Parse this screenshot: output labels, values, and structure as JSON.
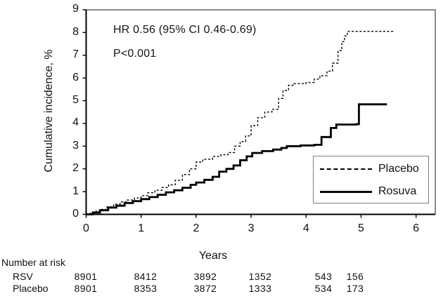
{
  "chart_data": {
    "type": "line",
    "subtype": "kaplan-meier-step",
    "ylabel": "Cumulative incidence, %",
    "xlabel": "Years",
    "xlim": [
      0,
      6
    ],
    "ylim": [
      0,
      9
    ],
    "xticks": [
      "0",
      "1",
      "2",
      "3",
      "4",
      "5",
      "6"
    ],
    "yticks": [
      "0",
      "1",
      "2",
      "3",
      "4",
      "5",
      "6",
      "7",
      "8",
      "9"
    ],
    "grid": false,
    "annotations": {
      "hr_text": "HR 0.56 (95% CI 0.46-0.69)",
      "p_text": "P<0.001"
    },
    "legend": {
      "position": "inside lower right",
      "entries": [
        {
          "name": "Placebo",
          "style": "dashed"
        },
        {
          "name": "Rosuva",
          "style": "solid"
        }
      ]
    },
    "series": [
      {
        "name": "Placebo",
        "style": "dashed",
        "color": "#000000",
        "points": [
          [
            0,
            0
          ],
          [
            0.08,
            0.06
          ],
          [
            0.18,
            0.14
          ],
          [
            0.28,
            0.22
          ],
          [
            0.38,
            0.33
          ],
          [
            0.5,
            0.45
          ],
          [
            0.62,
            0.55
          ],
          [
            0.75,
            0.63
          ],
          [
            0.88,
            0.72
          ],
          [
            1.0,
            0.82
          ],
          [
            1.12,
            0.95
          ],
          [
            1.25,
            1.06
          ],
          [
            1.38,
            1.18
          ],
          [
            1.5,
            1.3
          ],
          [
            1.62,
            1.5
          ],
          [
            1.75,
            1.75
          ],
          [
            1.88,
            2.0
          ],
          [
            2.0,
            2.3
          ],
          [
            2.12,
            2.42
          ],
          [
            2.3,
            2.55
          ],
          [
            2.45,
            2.62
          ],
          [
            2.58,
            2.72
          ],
          [
            2.7,
            3.0
          ],
          [
            2.8,
            3.2
          ],
          [
            2.9,
            3.45
          ],
          [
            3.0,
            3.9
          ],
          [
            3.12,
            4.25
          ],
          [
            3.25,
            4.5
          ],
          [
            3.38,
            4.62
          ],
          [
            3.5,
            5.1
          ],
          [
            3.58,
            5.45
          ],
          [
            3.68,
            5.68
          ],
          [
            3.78,
            5.75
          ],
          [
            4.0,
            5.8
          ],
          [
            4.15,
            5.95
          ],
          [
            4.25,
            6.1
          ],
          [
            4.38,
            6.3
          ],
          [
            4.48,
            6.65
          ],
          [
            4.58,
            7.2
          ],
          [
            4.65,
            7.6
          ],
          [
            4.7,
            7.85
          ],
          [
            4.75,
            8.05
          ],
          [
            5.6,
            8.05
          ]
        ]
      },
      {
        "name": "Rosuva",
        "style": "solid",
        "color": "#000000",
        "points": [
          [
            0,
            0
          ],
          [
            0.12,
            0.08
          ],
          [
            0.25,
            0.18
          ],
          [
            0.4,
            0.3
          ],
          [
            0.55,
            0.38
          ],
          [
            0.7,
            0.5
          ],
          [
            0.85,
            0.58
          ],
          [
            1.0,
            0.67
          ],
          [
            1.15,
            0.76
          ],
          [
            1.3,
            0.86
          ],
          [
            1.45,
            0.97
          ],
          [
            1.6,
            1.06
          ],
          [
            1.75,
            1.17
          ],
          [
            1.9,
            1.3
          ],
          [
            2.0,
            1.4
          ],
          [
            2.15,
            1.52
          ],
          [
            2.3,
            1.65
          ],
          [
            2.42,
            1.88
          ],
          [
            2.55,
            2.0
          ],
          [
            2.68,
            2.15
          ],
          [
            2.8,
            2.38
          ],
          [
            2.92,
            2.55
          ],
          [
            3.02,
            2.7
          ],
          [
            3.2,
            2.78
          ],
          [
            3.4,
            2.85
          ],
          [
            3.55,
            2.92
          ],
          [
            3.65,
            3.0
          ],
          [
            3.9,
            3.03
          ],
          [
            4.15,
            3.06
          ],
          [
            4.28,
            3.4
          ],
          [
            4.45,
            3.8
          ],
          [
            4.55,
            3.95
          ],
          [
            4.92,
            3.97
          ],
          [
            4.96,
            4.84
          ],
          [
            5.47,
            4.84
          ]
        ]
      }
    ]
  },
  "risk_table": {
    "title": "Number at risk",
    "rows": [
      {
        "label": "RSV",
        "values": [
          "8901",
          "8412",
          "3892",
          "1352",
          "543",
          "156"
        ]
      },
      {
        "label": "Placebo",
        "values": [
          "8901",
          "8353",
          "3872",
          "1333",
          "534",
          "173"
        ]
      }
    ]
  },
  "colors": {
    "curve": "#000000",
    "frame": "#3d3d3d",
    "axis": "#000000",
    "legend_border": "#7f7f7f",
    "background": "#ffffff"
  }
}
